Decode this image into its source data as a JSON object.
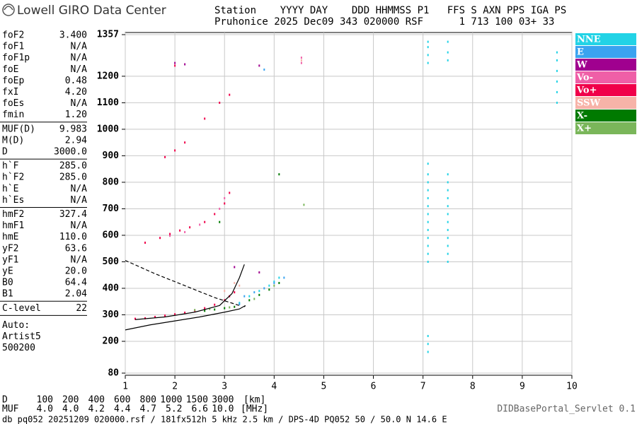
{
  "header": {
    "logo": "Lowell GIRO Data Center",
    "line1": "Station    YYYY DAY    DDD HHMMSS P1   FFS S AXN PPS IGA PS",
    "line2": "Pruhonice 2025 Dec09 343 020000 RSF      1 713 100 03+ 33"
  },
  "parameters": [
    [
      [
        "foF2",
        "3.400"
      ],
      [
        "foF1",
        "N/A"
      ],
      [
        "foF1p",
        "N/A"
      ],
      [
        "foE",
        "N/A"
      ],
      [
        "foEp",
        "0.48"
      ],
      [
        "fxI",
        "4.20"
      ],
      [
        "foEs",
        "N/A"
      ],
      [
        "fmin",
        "1.20"
      ]
    ],
    [
      [
        "MUF(D)",
        "9.983"
      ],
      [
        "M(D)",
        "2.94"
      ],
      [
        "D",
        "3000.0"
      ]
    ],
    [
      [
        "h`F",
        "285.0"
      ],
      [
        "h`F2",
        "285.0"
      ],
      [
        "h`E",
        "N/A"
      ],
      [
        "h`Es",
        "N/A"
      ]
    ],
    [
      [
        "hmF2",
        "327.4"
      ],
      [
        "hmF1",
        "N/A"
      ],
      [
        "hmE",
        "110.0"
      ],
      [
        "yF2",
        "63.6"
      ],
      [
        "yF1",
        "N/A"
      ],
      [
        "yE",
        "20.0"
      ],
      [
        "B0",
        "64.4"
      ],
      [
        "B1",
        "2.04"
      ]
    ],
    [
      [
        "C-level",
        "22"
      ]
    ]
  ],
  "autoscaling": [
    "Auto:",
    "Artist5",
    "500200"
  ],
  "distance_scale": {
    "d_label": "D",
    "d_values": [
      "100",
      "200",
      "400",
      "600",
      "800",
      "1000",
      "1500",
      "3000"
    ],
    "d_unit": "[km]",
    "muf_label": "MUF",
    "muf_values": [
      "4.0",
      "4.0",
      "4.2",
      "4.4",
      "4.7",
      "5.2",
      "6.6",
      "10.0"
    ],
    "muf_unit": "[MHz]"
  },
  "footer": {
    "info": "db pq052 20251209 020000.rsf / 181fx512h 5 kHz 2.5 km / DPS-4D PQ052 50 / 50.0 N 14.6 E",
    "servlet": "DIDBasePortal_Servlet 0.1"
  },
  "chart_data": {
    "type": "scatter",
    "xlim": [
      1,
      10
    ],
    "xticks": [
      1,
      2,
      3,
      4,
      5,
      6,
      7,
      8,
      9,
      10
    ],
    "ylim": [
      80,
      1357
    ],
    "yticks": [
      80,
      200,
      300,
      400,
      500,
      600,
      700,
      800,
      900,
      1000,
      1100,
      1200,
      1357
    ],
    "grid": true,
    "legend": "right",
    "series": [
      {
        "name": "NNE",
        "color": "#22d3e6",
        "x": [
          7.1,
          7.1,
          7.1,
          7.1,
          7.1,
          7.1,
          7.1,
          7.1,
          7.1,
          7.1,
          7.1,
          7.1,
          7.1,
          7.5,
          7.5,
          7.5,
          7.5,
          7.5,
          7.5,
          7.5,
          7.5,
          7.5,
          7.5,
          7.5,
          7.5,
          7.1,
          7.1,
          7.1,
          7.1,
          7.5,
          7.5,
          7.5,
          9.7,
          9.7,
          9.7,
          9.7,
          9.7,
          9.7,
          7.1,
          7.1,
          7.1,
          3.3,
          3.5,
          3.7,
          3.9,
          4.0,
          4.1
        ],
        "y": [
          500,
          530,
          560,
          590,
          620,
          650,
          680,
          710,
          740,
          770,
          800,
          830,
          870,
          500,
          530,
          560,
          590,
          620,
          650,
          680,
          710,
          740,
          770,
          800,
          830,
          1250,
          1280,
          1310,
          1330,
          1260,
          1290,
          1330,
          1100,
          1140,
          1180,
          1220,
          1260,
          1290,
          160,
          190,
          220,
          345,
          370,
          390,
          410,
          425,
          440
        ]
      },
      {
        "name": "E",
        "color": "#3aa3f0",
        "x": [
          3.3,
          3.4,
          3.6,
          3.8,
          4.0,
          4.2,
          3.8
        ],
        "y": [
          340,
          370,
          385,
          400,
          420,
          440,
          1225
        ]
      },
      {
        "name": "W",
        "color": "#a0008f",
        "x": [
          2.0,
          2.2,
          3.7,
          3.7,
          3.2
        ],
        "y": [
          1250,
          1245,
          1240,
          460,
          480
        ]
      },
      {
        "name": "Vo-",
        "color": "#ef5fa7",
        "x": [
          1.9,
          2.2,
          2.5,
          2.9,
          3.0,
          4.55,
          4.55
        ],
        "y": [
          598,
          612,
          640,
          700,
          740,
          1270,
          1250
        ]
      },
      {
        "name": "Vo+",
        "color": "#f0004a",
        "x": [
          1.2,
          1.4,
          1.6,
          1.8,
          2.0,
          2.2,
          2.4,
          2.6,
          2.8,
          3.0,
          3.1,
          3.2,
          1.4,
          1.7,
          1.9,
          2.1,
          2.3,
          2.6,
          2.8,
          3.0,
          3.1,
          1.8,
          2.0,
          2.2,
          2.6,
          2.9,
          3.1,
          2.0
        ],
        "y": [
          285,
          287,
          292,
          297,
          302,
          308,
          316,
          325,
          338,
          355,
          370,
          385,
          572,
          590,
          605,
          618,
          630,
          650,
          680,
          720,
          760,
          895,
          920,
          950,
          1040,
          1100,
          1130,
          1240
        ]
      },
      {
        "name": "SSW",
        "color": "#f7b3a8",
        "x": [
          3.0,
          3.2,
          3.3,
          4.55
        ],
        "y": [
          390,
          420,
          410,
          1260
        ]
      },
      {
        "name": "X-",
        "color": "#007a00",
        "x": [
          2.6,
          2.8,
          3.0,
          3.2,
          3.5,
          3.7,
          3.9,
          4.1,
          4.1,
          2.9
        ],
        "y": [
          315,
          320,
          325,
          330,
          355,
          375,
          395,
          420,
          830,
          650
        ]
      },
      {
        "name": "X+",
        "color": "#7ab65a",
        "x": [
          2.4,
          2.7,
          3.1,
          3.6,
          4.0,
          4.6
        ],
        "y": [
          318,
          322,
          328,
          360,
          410,
          715
        ]
      }
    ],
    "lines": [
      {
        "color": "#000000",
        "dashed": false,
        "x": [
          1.0,
          1.5,
          2.0,
          2.5,
          3.0,
          3.3,
          3.42,
          3.4
        ],
        "y": [
          243,
          262,
          277,
          292,
          310,
          322,
          335,
          330
        ]
      },
      {
        "color": "#000000",
        "dashed": false,
        "x": [
          1.2,
          1.8,
          2.4,
          2.9,
          3.15,
          3.3,
          3.4
        ],
        "y": [
          282,
          292,
          310,
          335,
          380,
          440,
          490
        ]
      },
      {
        "color": "#000000",
        "dashed": true,
        "x": [
          1.0,
          1.6,
          2.2,
          2.8,
          3.3
        ],
        "y": [
          505,
          455,
          410,
          365,
          335
        ]
      }
    ]
  }
}
